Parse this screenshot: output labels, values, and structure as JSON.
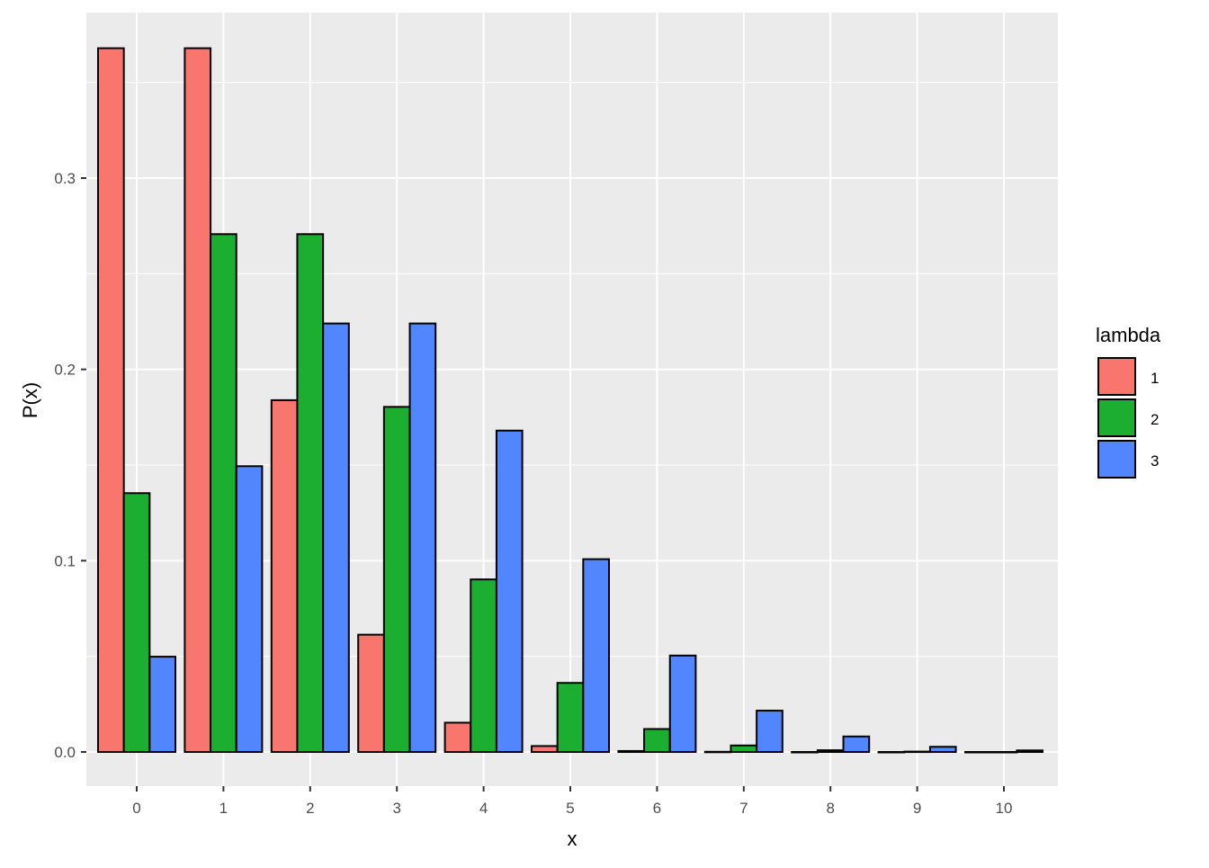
{
  "chart_data": {
    "type": "bar",
    "title": "",
    "xlabel": "x",
    "ylabel": "P(x)",
    "categories": [
      "0",
      "1",
      "2",
      "3",
      "4",
      "5",
      "6",
      "7",
      "8",
      "9",
      "10"
    ],
    "yticks": [
      "0.0",
      "0.1",
      "0.2",
      "0.3"
    ],
    "ytick_values": [
      0.0,
      0.1,
      0.2,
      0.3
    ],
    "ylim": [
      -0.018,
      0.386
    ],
    "grid": true,
    "legend_title": "lambda",
    "legend_position": "right",
    "series": [
      {
        "name": "1",
        "color": "#F8766D",
        "values": [
          0.3679,
          0.3679,
          0.1839,
          0.0613,
          0.0153,
          0.0031,
          0.0005,
          0.0001,
          0.0,
          0.0,
          0.0
        ]
      },
      {
        "name": "2",
        "color": "#1BAE30",
        "values": [
          0.1353,
          0.2707,
          0.2707,
          0.1804,
          0.0902,
          0.0361,
          0.012,
          0.0034,
          0.0009,
          0.0002,
          0.0
        ]
      },
      {
        "name": "3",
        "color": "#5286FF",
        "values": [
          0.0498,
          0.1494,
          0.224,
          0.224,
          0.168,
          0.1008,
          0.0504,
          0.0216,
          0.0081,
          0.0027,
          0.0008
        ]
      }
    ]
  }
}
